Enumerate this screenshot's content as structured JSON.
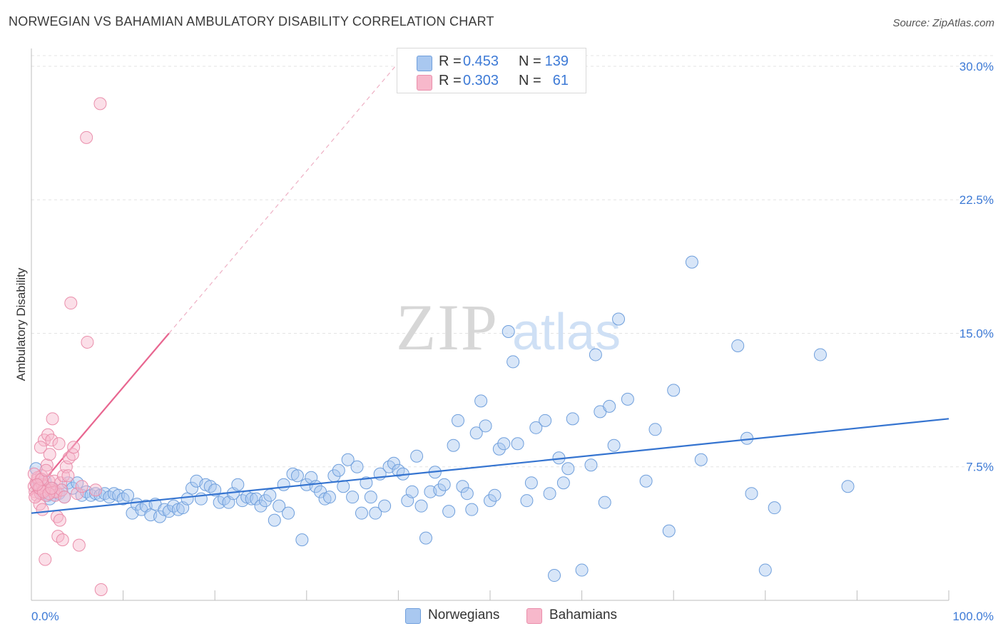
{
  "header": {
    "title": "NORWEGIAN VS BAHAMIAN AMBULATORY DISABILITY CORRELATION CHART",
    "source": "Source: ZipAtlas.com"
  },
  "legend": {
    "rows": [
      {
        "r_label": "R =",
        "r_value": "0.453",
        "n_label": "N =",
        "n_value": "139"
      },
      {
        "r_label": "R =",
        "r_value": "0.303",
        "n_label": "N =",
        "n_value": "61"
      }
    ],
    "bottom": [
      "Norwegians",
      "Bahamians"
    ]
  },
  "watermark": {
    "zip": "ZIP",
    "atlas": "atlas"
  },
  "colors": {
    "blue_fill": "#a9c8f0",
    "blue_stroke": "#6f9fdc",
    "blue_line": "#3574d0",
    "pink_fill": "#f7b8cb",
    "pink_stroke": "#ea8eab",
    "pink_line": "#e86690",
    "tick_text": "#3d7ad6",
    "grid": "#e3e3e3"
  },
  "chart_data": {
    "type": "scatter",
    "title": "NORWEGIAN VS BAHAMIAN AMBULATORY DISABILITY CORRELATION CHART",
    "xlabel": "",
    "ylabel": "Ambulatory Disability",
    "xlim": [
      0,
      100
    ],
    "ylim": [
      0,
      31
    ],
    "x_tick_labels": [
      "0.0%",
      "100.0%"
    ],
    "y_ticks": [
      7.5,
      15.0,
      22.5,
      30.0
    ],
    "y_tick_labels": [
      "7.5%",
      "15.0%",
      "22.5%",
      "30.0%"
    ],
    "grid": true,
    "legend_position": "top-center",
    "series": [
      {
        "name": "Norwegians",
        "r": 0.453,
        "n": 139,
        "trendline": {
          "x": [
            0,
            100
          ],
          "y": [
            4.9,
            10.2
          ]
        },
        "points": [
          [
            0.5,
            7.4
          ],
          [
            0.8,
            6.5
          ],
          [
            1.0,
            6.2
          ],
          [
            1.2,
            6.0
          ],
          [
            1.5,
            6.7
          ],
          [
            1.8,
            5.9
          ],
          [
            2.0,
            5.7
          ],
          [
            2.3,
            6.3
          ],
          [
            2.6,
            5.9
          ],
          [
            3.0,
            6.0
          ],
          [
            3.3,
            6.2
          ],
          [
            3.6,
            5.8
          ],
          [
            4.0,
            6.6
          ],
          [
            4.5,
            6.3
          ],
          [
            5.0,
            6.6
          ],
          [
            5.5,
            5.9
          ],
          [
            6.0,
            6.1
          ],
          [
            6.5,
            5.9
          ],
          [
            7.0,
            6.0
          ],
          [
            7.5,
            5.9
          ],
          [
            8.0,
            6.0
          ],
          [
            8.5,
            5.8
          ],
          [
            9.0,
            6.0
          ],
          [
            9.5,
            5.9
          ],
          [
            10.0,
            5.7
          ],
          [
            10.5,
            5.9
          ],
          [
            11.0,
            4.9
          ],
          [
            11.5,
            5.4
          ],
          [
            12.0,
            5.1
          ],
          [
            12.5,
            5.3
          ],
          [
            13.0,
            4.8
          ],
          [
            13.5,
            5.4
          ],
          [
            14.0,
            4.7
          ],
          [
            14.5,
            5.1
          ],
          [
            15.0,
            5.0
          ],
          [
            15.5,
            5.3
          ],
          [
            16.0,
            5.1
          ],
          [
            16.5,
            5.2
          ],
          [
            17.0,
            5.7
          ],
          [
            17.5,
            6.3
          ],
          [
            18.0,
            6.7
          ],
          [
            18.5,
            5.7
          ],
          [
            19.0,
            6.5
          ],
          [
            19.5,
            6.4
          ],
          [
            20.0,
            6.2
          ],
          [
            20.5,
            5.5
          ],
          [
            21.0,
            5.7
          ],
          [
            21.5,
            5.5
          ],
          [
            22.0,
            6.0
          ],
          [
            22.5,
            6.5
          ],
          [
            23.0,
            5.6
          ],
          [
            23.5,
            5.8
          ],
          [
            24.0,
            5.7
          ],
          [
            24.5,
            5.7
          ],
          [
            25.0,
            5.3
          ],
          [
            25.5,
            5.6
          ],
          [
            26.0,
            5.9
          ],
          [
            26.5,
            4.5
          ],
          [
            27.0,
            5.3
          ],
          [
            27.5,
            6.5
          ],
          [
            28.0,
            4.9
          ],
          [
            28.5,
            7.1
          ],
          [
            29.0,
            7.0
          ],
          [
            29.5,
            3.4
          ],
          [
            30.0,
            6.5
          ],
          [
            30.5,
            6.9
          ],
          [
            31.0,
            6.4
          ],
          [
            31.5,
            6.1
          ],
          [
            32.0,
            5.7
          ],
          [
            32.5,
            5.8
          ],
          [
            33.0,
            7.0
          ],
          [
            33.5,
            7.3
          ],
          [
            34.0,
            6.4
          ],
          [
            34.5,
            7.9
          ],
          [
            35.0,
            5.8
          ],
          [
            35.5,
            7.5
          ],
          [
            36.0,
            4.9
          ],
          [
            36.5,
            6.6
          ],
          [
            37.0,
            5.8
          ],
          [
            37.5,
            4.9
          ],
          [
            38.0,
            7.1
          ],
          [
            38.5,
            5.3
          ],
          [
            39.0,
            7.5
          ],
          [
            39.5,
            7.7
          ],
          [
            40.0,
            7.3
          ],
          [
            40.5,
            7.1
          ],
          [
            41.0,
            5.6
          ],
          [
            41.5,
            6.1
          ],
          [
            42.0,
            8.1
          ],
          [
            42.5,
            5.3
          ],
          [
            43.0,
            3.5
          ],
          [
            43.5,
            6.1
          ],
          [
            44.0,
            7.2
          ],
          [
            44.5,
            6.2
          ],
          [
            45.0,
            6.5
          ],
          [
            45.5,
            5.0
          ],
          [
            46.0,
            8.7
          ],
          [
            46.5,
            10.1
          ],
          [
            47.0,
            6.4
          ],
          [
            47.5,
            6.0
          ],
          [
            48.0,
            5.1
          ],
          [
            48.5,
            9.4
          ],
          [
            49.0,
            11.2
          ],
          [
            49.5,
            9.8
          ],
          [
            50.0,
            5.6
          ],
          [
            50.5,
            5.9
          ],
          [
            51.0,
            8.5
          ],
          [
            51.5,
            8.8
          ],
          [
            52.0,
            15.1
          ],
          [
            52.5,
            13.4
          ],
          [
            53.0,
            8.8
          ],
          [
            54.0,
            5.6
          ],
          [
            54.5,
            6.6
          ],
          [
            55.0,
            9.7
          ],
          [
            56.0,
            10.1
          ],
          [
            56.5,
            6.0
          ],
          [
            57.0,
            1.4
          ],
          [
            57.5,
            8.0
          ],
          [
            58.0,
            6.6
          ],
          [
            58.5,
            7.4
          ],
          [
            59.0,
            10.2
          ],
          [
            60.0,
            1.7
          ],
          [
            61.0,
            7.6
          ],
          [
            61.5,
            13.8
          ],
          [
            62.0,
            10.6
          ],
          [
            62.5,
            5.5
          ],
          [
            63.0,
            10.9
          ],
          [
            63.5,
            8.7
          ],
          [
            64.0,
            15.8
          ],
          [
            65.0,
            11.3
          ],
          [
            67.0,
            6.7
          ],
          [
            68.0,
            9.6
          ],
          [
            69.5,
            3.9
          ],
          [
            70.0,
            11.8
          ],
          [
            72.0,
            19.0
          ],
          [
            73.0,
            7.9
          ],
          [
            77.0,
            14.3
          ],
          [
            78.0,
            9.1
          ],
          [
            78.5,
            6.0
          ],
          [
            80.0,
            1.7
          ],
          [
            81.0,
            5.2
          ],
          [
            86.0,
            13.8
          ],
          [
            89.0,
            6.4
          ]
        ]
      },
      {
        "name": "Bahamians",
        "r": 0.303,
        "n": 61,
        "trendline": {
          "x": [
            0,
            15
          ],
          "y": [
            5.9,
            15.0
          ]
        },
        "trendline_dashed": {
          "x": [
            15,
            40
          ],
          "y": [
            15.0,
            30.2
          ]
        },
        "points": [
          [
            0.3,
            6.4
          ],
          [
            0.4,
            6.1
          ],
          [
            0.5,
            6.6
          ],
          [
            0.6,
            5.9
          ],
          [
            0.7,
            6.8
          ],
          [
            0.8,
            6.3
          ],
          [
            0.9,
            5.4
          ],
          [
            1.0,
            6.0
          ],
          [
            1.1,
            7.0
          ],
          [
            1.2,
            5.1
          ],
          [
            1.2,
            6.5
          ],
          [
            1.3,
            6.2
          ],
          [
            1.4,
            9.0
          ],
          [
            1.5,
            6.4
          ],
          [
            1.6,
            5.9
          ],
          [
            1.7,
            7.6
          ],
          [
            1.8,
            9.3
          ],
          [
            1.9,
            6.7
          ],
          [
            2.0,
            8.2
          ],
          [
            2.1,
            6.2
          ],
          [
            2.2,
            9.0
          ],
          [
            2.3,
            10.2
          ],
          [
            2.4,
            6.1
          ],
          [
            2.5,
            6.7
          ],
          [
            2.6,
            5.9
          ],
          [
            2.7,
            6.1
          ],
          [
            2.8,
            4.7
          ],
          [
            2.9,
            3.6
          ],
          [
            3.0,
            8.8
          ],
          [
            3.1,
            4.5
          ],
          [
            3.2,
            6.6
          ],
          [
            3.3,
            6.2
          ],
          [
            3.4,
            3.4
          ],
          [
            3.5,
            7.0
          ],
          [
            3.6,
            5.8
          ],
          [
            3.8,
            7.5
          ],
          [
            4.0,
            7.0
          ],
          [
            4.1,
            8.0
          ],
          [
            4.3,
            16.7
          ],
          [
            4.5,
            8.2
          ],
          [
            4.6,
            8.6
          ],
          [
            5.0,
            6.0
          ],
          [
            5.2,
            3.1
          ],
          [
            5.5,
            6.4
          ],
          [
            6.0,
            26.0
          ],
          [
            6.1,
            14.5
          ],
          [
            7.0,
            6.2
          ],
          [
            7.5,
            27.9
          ],
          [
            7.6,
            0.6
          ],
          [
            1.0,
            8.6
          ],
          [
            0.7,
            6.9
          ],
          [
            1.5,
            2.3
          ],
          [
            0.3,
            7.1
          ],
          [
            0.4,
            5.8
          ],
          [
            0.9,
            6.3
          ],
          [
            1.1,
            6.8
          ],
          [
            1.3,
            6.1
          ],
          [
            1.6,
            7.3
          ],
          [
            1.9,
            6.0
          ],
          [
            2.2,
            6.3
          ],
          [
            0.6,
            6.5
          ]
        ]
      }
    ]
  }
}
